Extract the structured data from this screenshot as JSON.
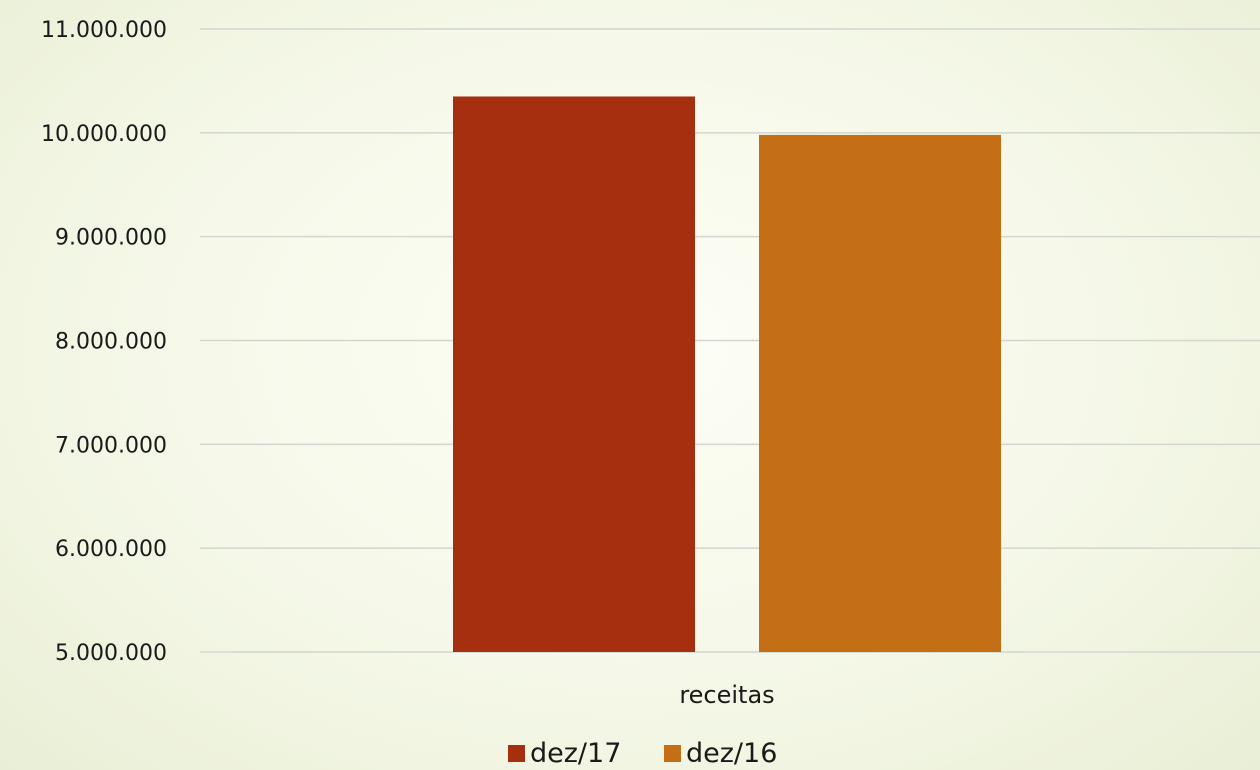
{
  "chart_data": {
    "type": "bar",
    "categories": [
      "receitas"
    ],
    "series": [
      {
        "name": "dez/17",
        "values": [
          10350000
        ],
        "color": "#a52f0e"
      },
      {
        "name": "dez/16",
        "values": [
          9980000
        ],
        "color": "#c46e15"
      }
    ],
    "ylim": [
      5000000,
      11000000
    ],
    "yticks": [
      5000000,
      6000000,
      7000000,
      8000000,
      9000000,
      10000000,
      11000000
    ],
    "ytick_labels": [
      "5.000.000",
      "6.000.000",
      "7.000.000",
      "8.000.000",
      "9.000.000",
      "10.000.000",
      "11.000.000"
    ],
    "grid": true,
    "legend_position": "bottom-center",
    "title": "",
    "xlabel": "",
    "ylabel": ""
  }
}
